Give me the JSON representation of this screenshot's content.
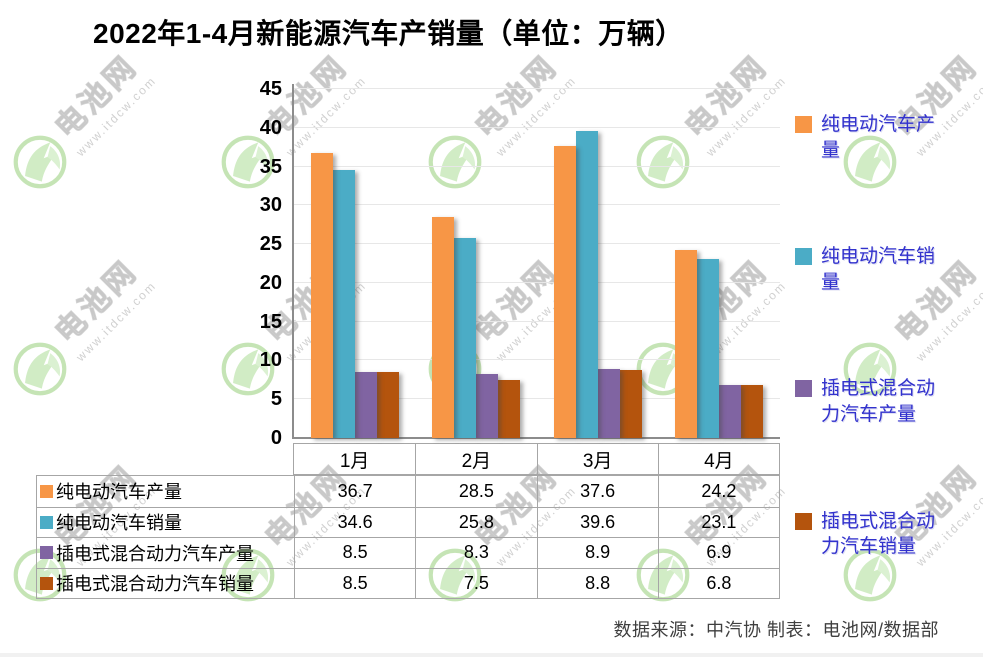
{
  "title": "2022年1-4月新能源汽车产销量（单位：万辆）",
  "source_note": "数据来源：中汽协 制表：电池网/数据部",
  "watermark": {
    "brand": "电池网",
    "url": "www.itdcw.com"
  },
  "chart_data": {
    "type": "bar",
    "title": "2022年1-4月新能源汽车产销量（单位：万辆）",
    "unit": "万辆",
    "categories": [
      "1月",
      "2月",
      "3月",
      "4月"
    ],
    "series": [
      {
        "name": "纯电动汽车产量",
        "color": "#F79646",
        "values": [
          36.7,
          28.5,
          37.6,
          24.2
        ]
      },
      {
        "name": "纯电动汽车销量",
        "color": "#4BACC6",
        "values": [
          34.6,
          25.8,
          39.6,
          23.1
        ]
      },
      {
        "name": "插电式混合动力汽车产量",
        "color": "#8064A2",
        "values": [
          8.5,
          8.3,
          8.9,
          6.9
        ]
      },
      {
        "name": "插电式混合动力汽车销量",
        "color": "#B4540D",
        "values": [
          8.5,
          7.5,
          8.8,
          6.8
        ]
      }
    ],
    "ylim": [
      0,
      45
    ],
    "ytick_step": 5,
    "grid": true,
    "legend_position": "right",
    "legend_text_color": "#3232CD",
    "data_table": true
  }
}
